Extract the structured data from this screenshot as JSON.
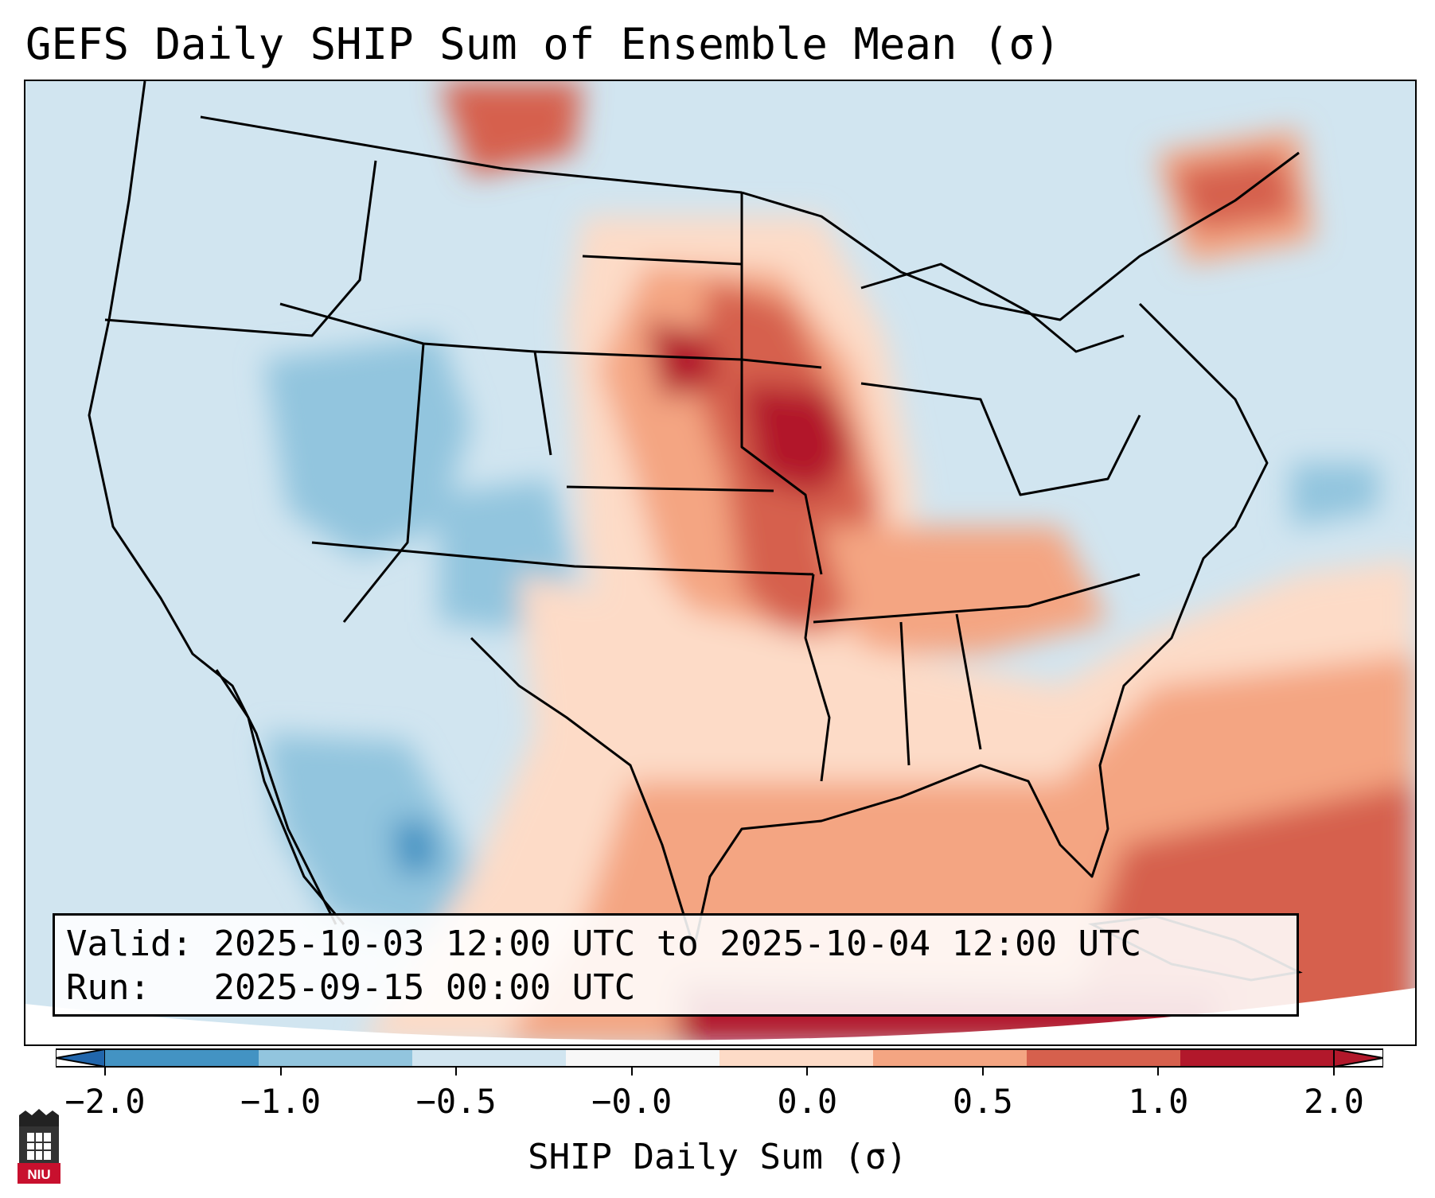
{
  "title": "GEFS Daily SHIP Sum of Ensemble Mean (σ)",
  "info": {
    "valid_label": "Valid:",
    "valid_value": "2025-10-03 12:00 UTC to 2025-10-04 12:00 UTC",
    "run_label": "Run:",
    "run_value": "2025-09-15 00:00 UTC"
  },
  "colorbar": {
    "label": "SHIP Daily Sum (σ)",
    "tick_labels": [
      "−2.0",
      "−1.0",
      "−0.5",
      "−0.0",
      "0.0",
      "0.5",
      "1.0",
      "2.0"
    ],
    "colors": [
      "#2166ac",
      "#4393c3",
      "#92c5de",
      "#d1e5f0",
      "#f7f7f7",
      "#fddbc7",
      "#f4a582",
      "#d6604d",
      "#b2182b"
    ]
  },
  "map": {
    "region": "Contiguous United States",
    "field": "SHIP daily sum anomaly",
    "highlights": [
      "Positive anomalies across central Plains and Midwest",
      "Negative anomalies over the Intermountain West",
      "Positive anomalies over Gulf of Mexico and Atlantic"
    ]
  },
  "logo": {
    "text": "NIU"
  }
}
